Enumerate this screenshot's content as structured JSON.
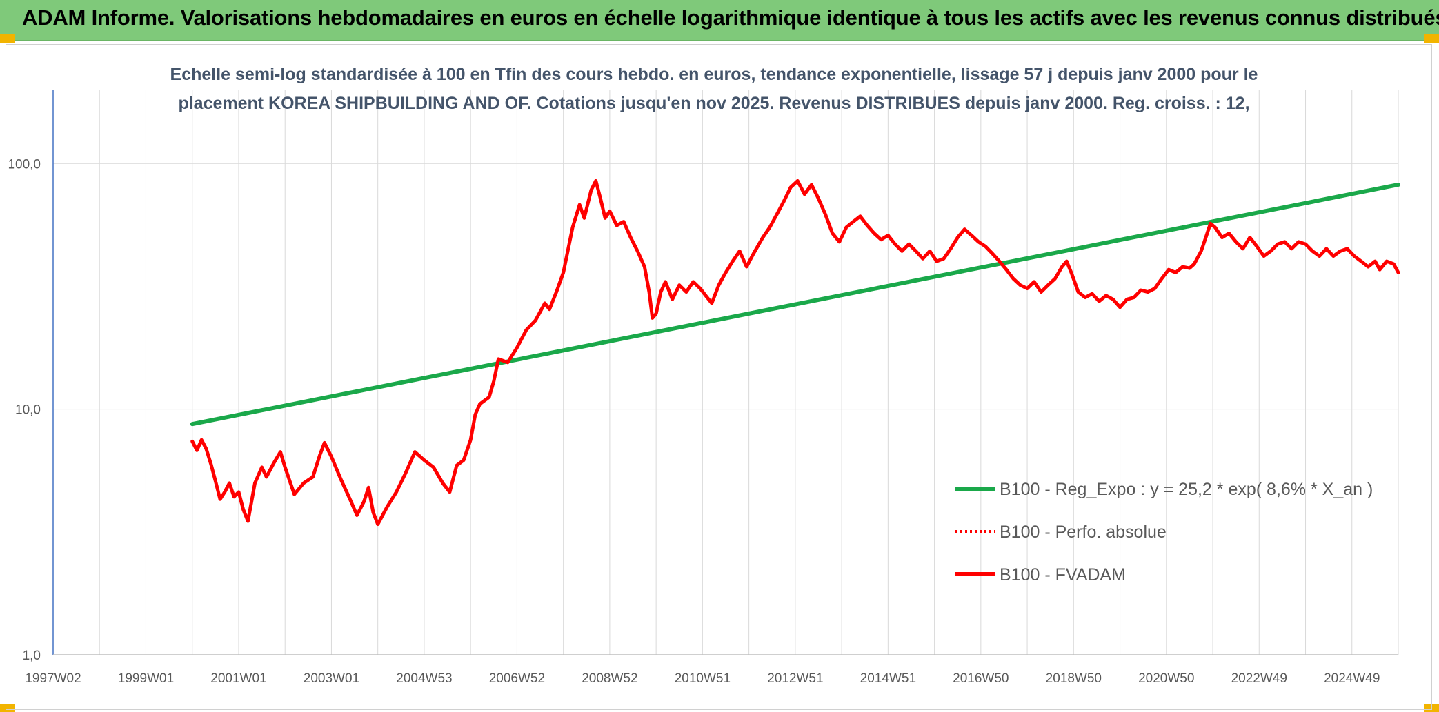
{
  "header": {
    "title": "ADAM Informe. Valorisations hebdomadaires en euros en échelle logarithmique identique à tous les actifs avec les revenus connus distribués"
  },
  "chart_data": {
    "type": "line",
    "subtitle_lines": [
      "Echelle semi-log standardisée à 100 en Tfin des cours hebdo. en euros, tendance exponentielle, lissage 57 j depuis janv 2000 pour le",
      "placement KOREA SHIPBUILDING AND OF. Cotations jusqu'en nov 2025. Revenus DISTRIBUES depuis janv 2000. Reg. croiss. : 12,"
    ],
    "y_scale": "log",
    "ylim": [
      1,
      200
    ],
    "xlim": [
      1997.0,
      2026.0
    ],
    "x_tick_labels": [
      "1997W02",
      "1999W01",
      "2001W01",
      "2003W01",
      "2004W53",
      "2006W52",
      "2008W52",
      "2010W51",
      "2012W51",
      "2014W51",
      "2016W50",
      "2018W50",
      "2020W50",
      "2022W49",
      "2024W49"
    ],
    "y_tick_labels": [
      "1,0",
      "10,0",
      "100,0"
    ],
    "grid": true,
    "legend_position": "bottom-right",
    "colors": {
      "trend": "#1aa84a",
      "series": "#ff0000",
      "axis": "#4472c4",
      "grid": "#d9d9d9"
    },
    "series": [
      {
        "name": "B100 - Reg_Expo : y = 25,2 * exp( 8,6% *  X_an )",
        "style": "solid-green",
        "points": [
          [
            2000.0,
            8.7
          ],
          [
            2026.0,
            82.0
          ]
        ]
      },
      {
        "name": "B100 - Perfo. absolue",
        "style": "dotted-red",
        "points": []
      },
      {
        "name": "B100 - FVADAM",
        "style": "solid-red",
        "points": [
          [
            2000.0,
            7.4
          ],
          [
            2000.1,
            6.8
          ],
          [
            2000.2,
            7.5
          ],
          [
            2000.3,
            6.9
          ],
          [
            2000.4,
            6.0
          ],
          [
            2000.5,
            5.1
          ],
          [
            2000.6,
            4.3
          ],
          [
            2000.7,
            4.6
          ],
          [
            2000.8,
            5.0
          ],
          [
            2000.9,
            4.4
          ],
          [
            2001.0,
            4.6
          ],
          [
            2001.1,
            3.9
          ],
          [
            2001.2,
            3.5
          ],
          [
            2001.35,
            5.0
          ],
          [
            2001.5,
            5.8
          ],
          [
            2001.6,
            5.3
          ],
          [
            2001.75,
            6.0
          ],
          [
            2001.9,
            6.7
          ],
          [
            2002.0,
            5.8
          ],
          [
            2002.2,
            4.5
          ],
          [
            2002.4,
            5.0
          ],
          [
            2002.6,
            5.3
          ],
          [
            2002.75,
            6.5
          ],
          [
            2002.85,
            7.3
          ],
          [
            2003.0,
            6.4
          ],
          [
            2003.2,
            5.2
          ],
          [
            2003.4,
            4.3
          ],
          [
            2003.55,
            3.7
          ],
          [
            2003.7,
            4.2
          ],
          [
            2003.8,
            4.8
          ],
          [
            2003.9,
            3.8
          ],
          [
            2004.0,
            3.4
          ],
          [
            2004.2,
            4.0
          ],
          [
            2004.4,
            4.6
          ],
          [
            2004.6,
            5.5
          ],
          [
            2004.8,
            6.7
          ],
          [
            2005.0,
            6.2
          ],
          [
            2005.2,
            5.8
          ],
          [
            2005.4,
            5.0
          ],
          [
            2005.55,
            4.6
          ],
          [
            2005.7,
            5.9
          ],
          [
            2005.85,
            6.2
          ],
          [
            2006.0,
            7.5
          ],
          [
            2006.1,
            9.5
          ],
          [
            2006.2,
            10.5
          ],
          [
            2006.4,
            11.2
          ],
          [
            2006.5,
            13.0
          ],
          [
            2006.6,
            16.0
          ],
          [
            2006.8,
            15.5
          ],
          [
            2007.0,
            17.8
          ],
          [
            2007.2,
            21.0
          ],
          [
            2007.4,
            23.0
          ],
          [
            2007.6,
            27.0
          ],
          [
            2007.7,
            25.5
          ],
          [
            2007.85,
            30.0
          ],
          [
            2008.0,
            36.0
          ],
          [
            2008.2,
            55.0
          ],
          [
            2008.35,
            68.0
          ],
          [
            2008.45,
            60.0
          ],
          [
            2008.6,
            78.0
          ],
          [
            2008.7,
            85.0
          ],
          [
            2008.8,
            72.0
          ],
          [
            2008.9,
            60.0
          ],
          [
            2009.0,
            64.0
          ],
          [
            2009.15,
            56.0
          ],
          [
            2009.3,
            58.0
          ],
          [
            2009.45,
            50.0
          ],
          [
            2009.6,
            44.0
          ],
          [
            2009.75,
            38.0
          ],
          [
            2009.85,
            30.0
          ],
          [
            2009.92,
            23.5
          ],
          [
            2010.0,
            24.5
          ],
          [
            2010.1,
            30.0
          ],
          [
            2010.2,
            33.0
          ],
          [
            2010.35,
            28.0
          ],
          [
            2010.5,
            32.0
          ],
          [
            2010.65,
            30.0
          ],
          [
            2010.8,
            33.0
          ],
          [
            2010.95,
            31.0
          ],
          [
            2011.1,
            28.5
          ],
          [
            2011.2,
            27.0
          ],
          [
            2011.35,
            32.0
          ],
          [
            2011.5,
            36.0
          ],
          [
            2011.65,
            40.0
          ],
          [
            2011.8,
            44.0
          ],
          [
            2011.95,
            38.0
          ],
          [
            2012.1,
            43.0
          ],
          [
            2012.3,
            50.0
          ],
          [
            2012.45,
            55.0
          ],
          [
            2012.6,
            62.0
          ],
          [
            2012.75,
            70.0
          ],
          [
            2012.9,
            80.0
          ],
          [
            2013.05,
            85.0
          ],
          [
            2013.2,
            75.0
          ],
          [
            2013.35,
            82.0
          ],
          [
            2013.5,
            72.0
          ],
          [
            2013.65,
            62.0
          ],
          [
            2013.8,
            52.0
          ],
          [
            2013.95,
            48.0
          ],
          [
            2014.1,
            55.0
          ],
          [
            2014.25,
            58.0
          ],
          [
            2014.4,
            61.0
          ],
          [
            2014.55,
            56.0
          ],
          [
            2014.7,
            52.0
          ],
          [
            2014.85,
            49.0
          ],
          [
            2015.0,
            51.0
          ],
          [
            2015.15,
            47.0
          ],
          [
            2015.3,
            44.0
          ],
          [
            2015.45,
            47.0
          ],
          [
            2015.6,
            44.0
          ],
          [
            2015.75,
            41.0
          ],
          [
            2015.9,
            44.0
          ],
          [
            2016.05,
            40.0
          ],
          [
            2016.2,
            41.0
          ],
          [
            2016.35,
            45.0
          ],
          [
            2016.5,
            50.0
          ],
          [
            2016.65,
            54.0
          ],
          [
            2016.8,
            51.0
          ],
          [
            2016.95,
            48.0
          ],
          [
            2017.1,
            46.0
          ],
          [
            2017.25,
            43.0
          ],
          [
            2017.4,
            40.0
          ],
          [
            2017.55,
            37.0
          ],
          [
            2017.7,
            34.0
          ],
          [
            2017.85,
            32.0
          ],
          [
            2018.0,
            31.0
          ],
          [
            2018.15,
            33.0
          ],
          [
            2018.3,
            30.0
          ],
          [
            2018.45,
            32.0
          ],
          [
            2018.6,
            34.0
          ],
          [
            2018.75,
            38.0
          ],
          [
            2018.85,
            40.0
          ],
          [
            2018.95,
            36.0
          ],
          [
            2019.1,
            30.0
          ],
          [
            2019.25,
            28.5
          ],
          [
            2019.4,
            29.5
          ],
          [
            2019.55,
            27.5
          ],
          [
            2019.7,
            29.0
          ],
          [
            2019.85,
            28.0
          ],
          [
            2020.0,
            26.0
          ],
          [
            2020.15,
            28.0
          ],
          [
            2020.3,
            28.5
          ],
          [
            2020.45,
            30.5
          ],
          [
            2020.6,
            30.0
          ],
          [
            2020.75,
            31.0
          ],
          [
            2020.9,
            34.0
          ],
          [
            2021.05,
            37.0
          ],
          [
            2021.2,
            36.0
          ],
          [
            2021.35,
            38.0
          ],
          [
            2021.5,
            37.5
          ],
          [
            2021.6,
            39.0
          ],
          [
            2021.75,
            44.0
          ],
          [
            2021.85,
            50.0
          ],
          [
            2021.95,
            57.0
          ],
          [
            2022.05,
            55.0
          ],
          [
            2022.2,
            50.0
          ],
          [
            2022.35,
            52.0
          ],
          [
            2022.5,
            48.0
          ],
          [
            2022.65,
            45.0
          ],
          [
            2022.8,
            50.0
          ],
          [
            2022.95,
            46.0
          ],
          [
            2023.1,
            42.0
          ],
          [
            2023.25,
            44.0
          ],
          [
            2023.4,
            47.0
          ],
          [
            2023.55,
            48.0
          ],
          [
            2023.7,
            45.0
          ],
          [
            2023.85,
            48.0
          ],
          [
            2024.0,
            47.0
          ],
          [
            2024.15,
            44.0
          ],
          [
            2024.3,
            42.0
          ],
          [
            2024.45,
            45.0
          ],
          [
            2024.6,
            42.0
          ],
          [
            2024.75,
            44.0
          ],
          [
            2024.9,
            45.0
          ],
          [
            2025.05,
            42.0
          ],
          [
            2025.2,
            40.0
          ],
          [
            2025.35,
            38.0
          ],
          [
            2025.5,
            40.0
          ],
          [
            2025.6,
            37.0
          ],
          [
            2025.75,
            40.0
          ],
          [
            2025.9,
            39.0
          ],
          [
            2026.0,
            36.0
          ]
        ]
      }
    ]
  }
}
